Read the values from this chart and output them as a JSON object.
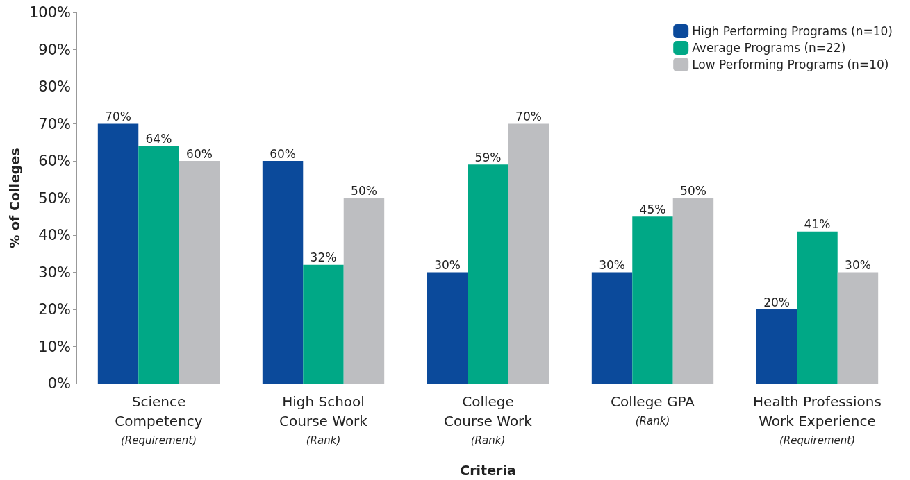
{
  "chart_data": {
    "type": "bar",
    "xlabel": "Criteria",
    "ylabel": "% of Colleges",
    "categories": [
      "Science\nCompetency\n(Requirement)",
      "High School\nCourse Work\n(Rank)",
      "College\nCourse Work\n(Rank)",
      "College GPA\n(Rank)",
      "Health Professions\nWork Experience\n(Requirement)"
    ],
    "series": [
      {
        "name": "High Performing Programs (n=10)",
        "color": "#0b4a9b",
        "values": [
          70,
          60,
          30,
          30,
          20
        ],
        "value_labels": [
          "70%",
          "60%",
          "30%",
          "30%",
          "20%"
        ]
      },
      {
        "name": "Average Programs (n=22)",
        "color": "#00a886",
        "values": [
          64,
          32,
          59,
          45,
          41
        ],
        "value_labels": [
          "64%",
          "32%",
          "59%",
          "45%",
          "41%"
        ]
      },
      {
        "name": "Low Performing Programs (n=10)",
        "color": "#bdbec1",
        "values": [
          60,
          50,
          70,
          50,
          30
        ],
        "value_labels": [
          "60%",
          "50%",
          "70%",
          "50%",
          "30%"
        ]
      }
    ],
    "ylim": [
      0,
      100
    ],
    "yticks": [
      {
        "value": 0,
        "label": "0%"
      },
      {
        "value": 10,
        "label": "10%"
      },
      {
        "value": 20,
        "label": "20%"
      },
      {
        "value": 30,
        "label": "30%"
      },
      {
        "value": 40,
        "label": "40%"
      },
      {
        "value": 50,
        "label": "50%"
      },
      {
        "value": 60,
        "label": "60%"
      },
      {
        "value": 70,
        "label": "70%"
      },
      {
        "value": 80,
        "label": "80%"
      },
      {
        "value": 90,
        "label": "90%"
      },
      {
        "value": 100,
        "label": "100%"
      }
    ],
    "grid": false,
    "legend": "top right"
  }
}
